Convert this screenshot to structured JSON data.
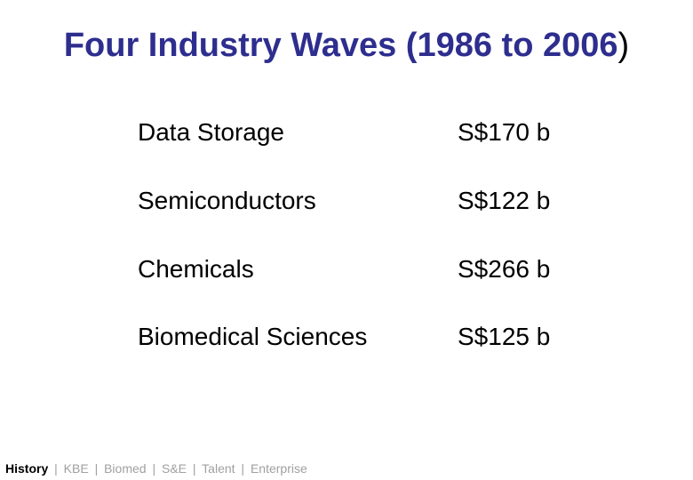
{
  "slide": {
    "title_main": "Four Industry Waves (1986 to 2006",
    "title_paren": ")"
  },
  "industries": [
    {
      "name": "Data Storage",
      "value": "S$170 b"
    },
    {
      "name": "Semiconductors",
      "value": "S$122 b"
    },
    {
      "name": "Chemicals",
      "value": "S$266 b"
    },
    {
      "name": "Biomedical Sciences",
      "value": "S$125 b"
    }
  ],
  "footer_nav": {
    "active": "History",
    "items": [
      "KBE",
      "Biomed",
      "S&E",
      "Talent",
      "Enterprise"
    ],
    "separator": "|"
  },
  "colors": {
    "title": "#2e2e8f",
    "nav_inactive": "#a0a0a0"
  }
}
